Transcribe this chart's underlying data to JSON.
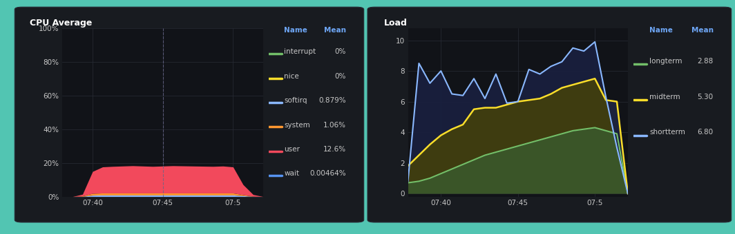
{
  "bg_outer": "#52c5b2",
  "bg_panel": "#181b20",
  "bg_plot": "#111318",
  "grid_color": "#282c36",
  "text_color": "#c8c8c8",
  "title_color": "#ffffff",
  "header_color": "#6ea6f5",
  "cpu": {
    "title": "CPU Average",
    "yticks": [
      "0%",
      "20%",
      "40%",
      "60%",
      "80%",
      "100%"
    ],
    "ytick_vals": [
      0,
      20,
      40,
      60,
      80,
      100
    ],
    "ylim": [
      0,
      100
    ],
    "xticks": [
      "07:40",
      "07:45",
      "07:5"
    ],
    "xtick_pos": [
      3,
      10,
      17
    ],
    "legend": [
      {
        "name": "interrupt",
        "mean": "0%",
        "color": "#73bf69"
      },
      {
        "name": "nice",
        "mean": "0%",
        "color": "#fade2a"
      },
      {
        "name": "softirq",
        "mean": "0.879%",
        "color": "#8ab8ff"
      },
      {
        "name": "system",
        "mean": "1.06%",
        "color": "#ff9830"
      },
      {
        "name": "user",
        "mean": "12.6%",
        "color": "#f2495c"
      },
      {
        "name": "wait",
        "mean": "0.00464%",
        "color": "#5794f2"
      }
    ],
    "x": [
      0,
      1,
      2,
      3,
      4,
      5,
      6,
      7,
      8,
      9,
      10,
      11,
      12,
      13,
      14,
      15,
      16,
      17,
      18,
      19,
      20
    ],
    "user": [
      0,
      0,
      1,
      13,
      15.5,
      15.8,
      16,
      16.2,
      16,
      15.8,
      16,
      16.2,
      16.1,
      16,
      15.9,
      15.8,
      16,
      15.5,
      6,
      1,
      0
    ],
    "system": [
      0,
      0,
      0.3,
      1.1,
      1.2,
      1.2,
      1.2,
      1.2,
      1.2,
      1.2,
      1.2,
      1.2,
      1.2,
      1.2,
      1.2,
      1.2,
      1.2,
      1.2,
      0.6,
      0.1,
      0
    ],
    "softirq": [
      0,
      0,
      0.1,
      0.8,
      0.9,
      0.9,
      0.9,
      0.9,
      0.9,
      0.9,
      0.9,
      0.9,
      0.9,
      0.9,
      0.9,
      0.9,
      0.9,
      0.9,
      0.5,
      0.1,
      0
    ],
    "nice": [
      0,
      0,
      0,
      0,
      0,
      0,
      0,
      0,
      0,
      0,
      0,
      0,
      0,
      0,
      0,
      0,
      0,
      0,
      0,
      0,
      0
    ],
    "interrupt": [
      0,
      0,
      0,
      0,
      0,
      0,
      0,
      0,
      0,
      0,
      0,
      0,
      0,
      0,
      0,
      0,
      0,
      0,
      0,
      0,
      0
    ],
    "wait": [
      0,
      0,
      0,
      0,
      0,
      0,
      0,
      0,
      0,
      0,
      0,
      0,
      0,
      0,
      0,
      0,
      0,
      0,
      0,
      0,
      0
    ],
    "vline_x": 10
  },
  "load": {
    "title": "Load",
    "yticks": [
      0,
      2,
      4,
      6,
      8,
      10
    ],
    "ylim": [
      -0.2,
      10.8
    ],
    "xticks": [
      "07:40",
      "07:45",
      "07:5"
    ],
    "xtick_pos": [
      3,
      10,
      17
    ],
    "legend": [
      {
        "name": "longterm",
        "mean": "2.88",
        "color": "#73bf69"
      },
      {
        "name": "midterm",
        "mean": "5.30",
        "color": "#fade2a"
      },
      {
        "name": "shortterm",
        "mean": "6.80",
        "color": "#8ab8ff"
      }
    ],
    "x": [
      0,
      1,
      2,
      3,
      4,
      5,
      6,
      7,
      8,
      9,
      10,
      11,
      12,
      13,
      14,
      15,
      16,
      17,
      18,
      19,
      20
    ],
    "longterm": [
      0.7,
      0.8,
      1.0,
      1.3,
      1.6,
      1.9,
      2.2,
      2.5,
      2.7,
      2.9,
      3.1,
      3.3,
      3.5,
      3.7,
      3.9,
      4.1,
      4.2,
      4.3,
      4.1,
      3.9,
      0
    ],
    "midterm": [
      1.8,
      2.5,
      3.2,
      3.8,
      4.2,
      4.5,
      5.5,
      5.6,
      5.6,
      5.8,
      6.0,
      6.1,
      6.2,
      6.5,
      6.9,
      7.1,
      7.3,
      7.5,
      6.1,
      6.0,
      0
    ],
    "shortterm": [
      0.8,
      8.5,
      7.2,
      8.0,
      6.5,
      6.4,
      7.5,
      6.2,
      7.8,
      5.9,
      6.0,
      8.1,
      7.8,
      8.3,
      8.6,
      9.5,
      9.3,
      9.9,
      6.3,
      3.0,
      0
    ]
  }
}
